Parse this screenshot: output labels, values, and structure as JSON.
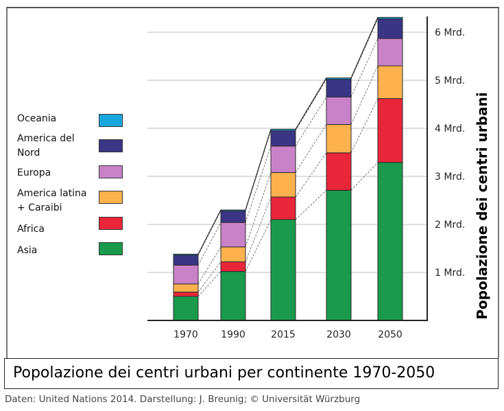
{
  "chart_data": {
    "type": "bar",
    "stacked": true,
    "title": "Popolazione dei centri urbani per continente 1970-2050",
    "xlabel": "",
    "ylabel": "Popolazione dei centri urbani",
    "ylim": [
      0,
      6.5
    ],
    "y_unit": "Mrd.",
    "y_ticks": [
      {
        "value": 1,
        "label": "1 Mrd."
      },
      {
        "value": 2,
        "label": "2 Mrd."
      },
      {
        "value": 3,
        "label": "3 Mrd."
      },
      {
        "value": 4,
        "label": "4 Mrd."
      },
      {
        "value": 5,
        "label": "5 Mrd."
      },
      {
        "value": 6,
        "label": "6 Mrd."
      }
    ],
    "y_axis_side": "right",
    "grid": true,
    "legend_position": "left",
    "categories": [
      "1970",
      "1990",
      "2015",
      "2030",
      "2050"
    ],
    "series": [
      {
        "name": "Asia",
        "color": "#1a9a4c",
        "values": [
          0.5,
          1.02,
          2.1,
          2.71,
          3.29
        ]
      },
      {
        "name": "Africa",
        "color": "#e9263a",
        "values": [
          0.09,
          0.2,
          0.47,
          0.78,
          1.33
        ]
      },
      {
        "name": "America latina + Caraibi",
        "color": "#fdb24e",
        "values": [
          0.17,
          0.31,
          0.51,
          0.59,
          0.68
        ]
      },
      {
        "name": "Europa",
        "color": "#c982c8",
        "values": [
          0.39,
          0.51,
          0.55,
          0.57,
          0.57
        ]
      },
      {
        "name": "America del Nord",
        "color": "#3b3585",
        "values": [
          0.21,
          0.24,
          0.32,
          0.37,
          0.41
        ]
      },
      {
        "name": "Oceania",
        "color": "#1aa7de",
        "values": [
          0.02,
          0.02,
          0.03,
          0.03,
          0.03
        ]
      }
    ],
    "legend": [
      {
        "label_lines": [
          "Oceania"
        ],
        "color": "#1aa7de"
      },
      {
        "label_lines": [
          "America del",
          "Nord"
        ],
        "color": "#3b3585"
      },
      {
        "label_lines": [
          "Europa"
        ],
        "color": "#c982c8"
      },
      {
        "label_lines": [
          "America latina",
          "+ Caraibi"
        ],
        "color": "#fdb24e"
      },
      {
        "label_lines": [
          "Africa"
        ],
        "color": "#e9263a"
      },
      {
        "label_lines": [
          "Asia"
        ],
        "color": "#1a9a4c"
      }
    ],
    "source": "Daten: United Nations 2014. Darstellung: J. Breunig; © Universität Würzburg"
  }
}
